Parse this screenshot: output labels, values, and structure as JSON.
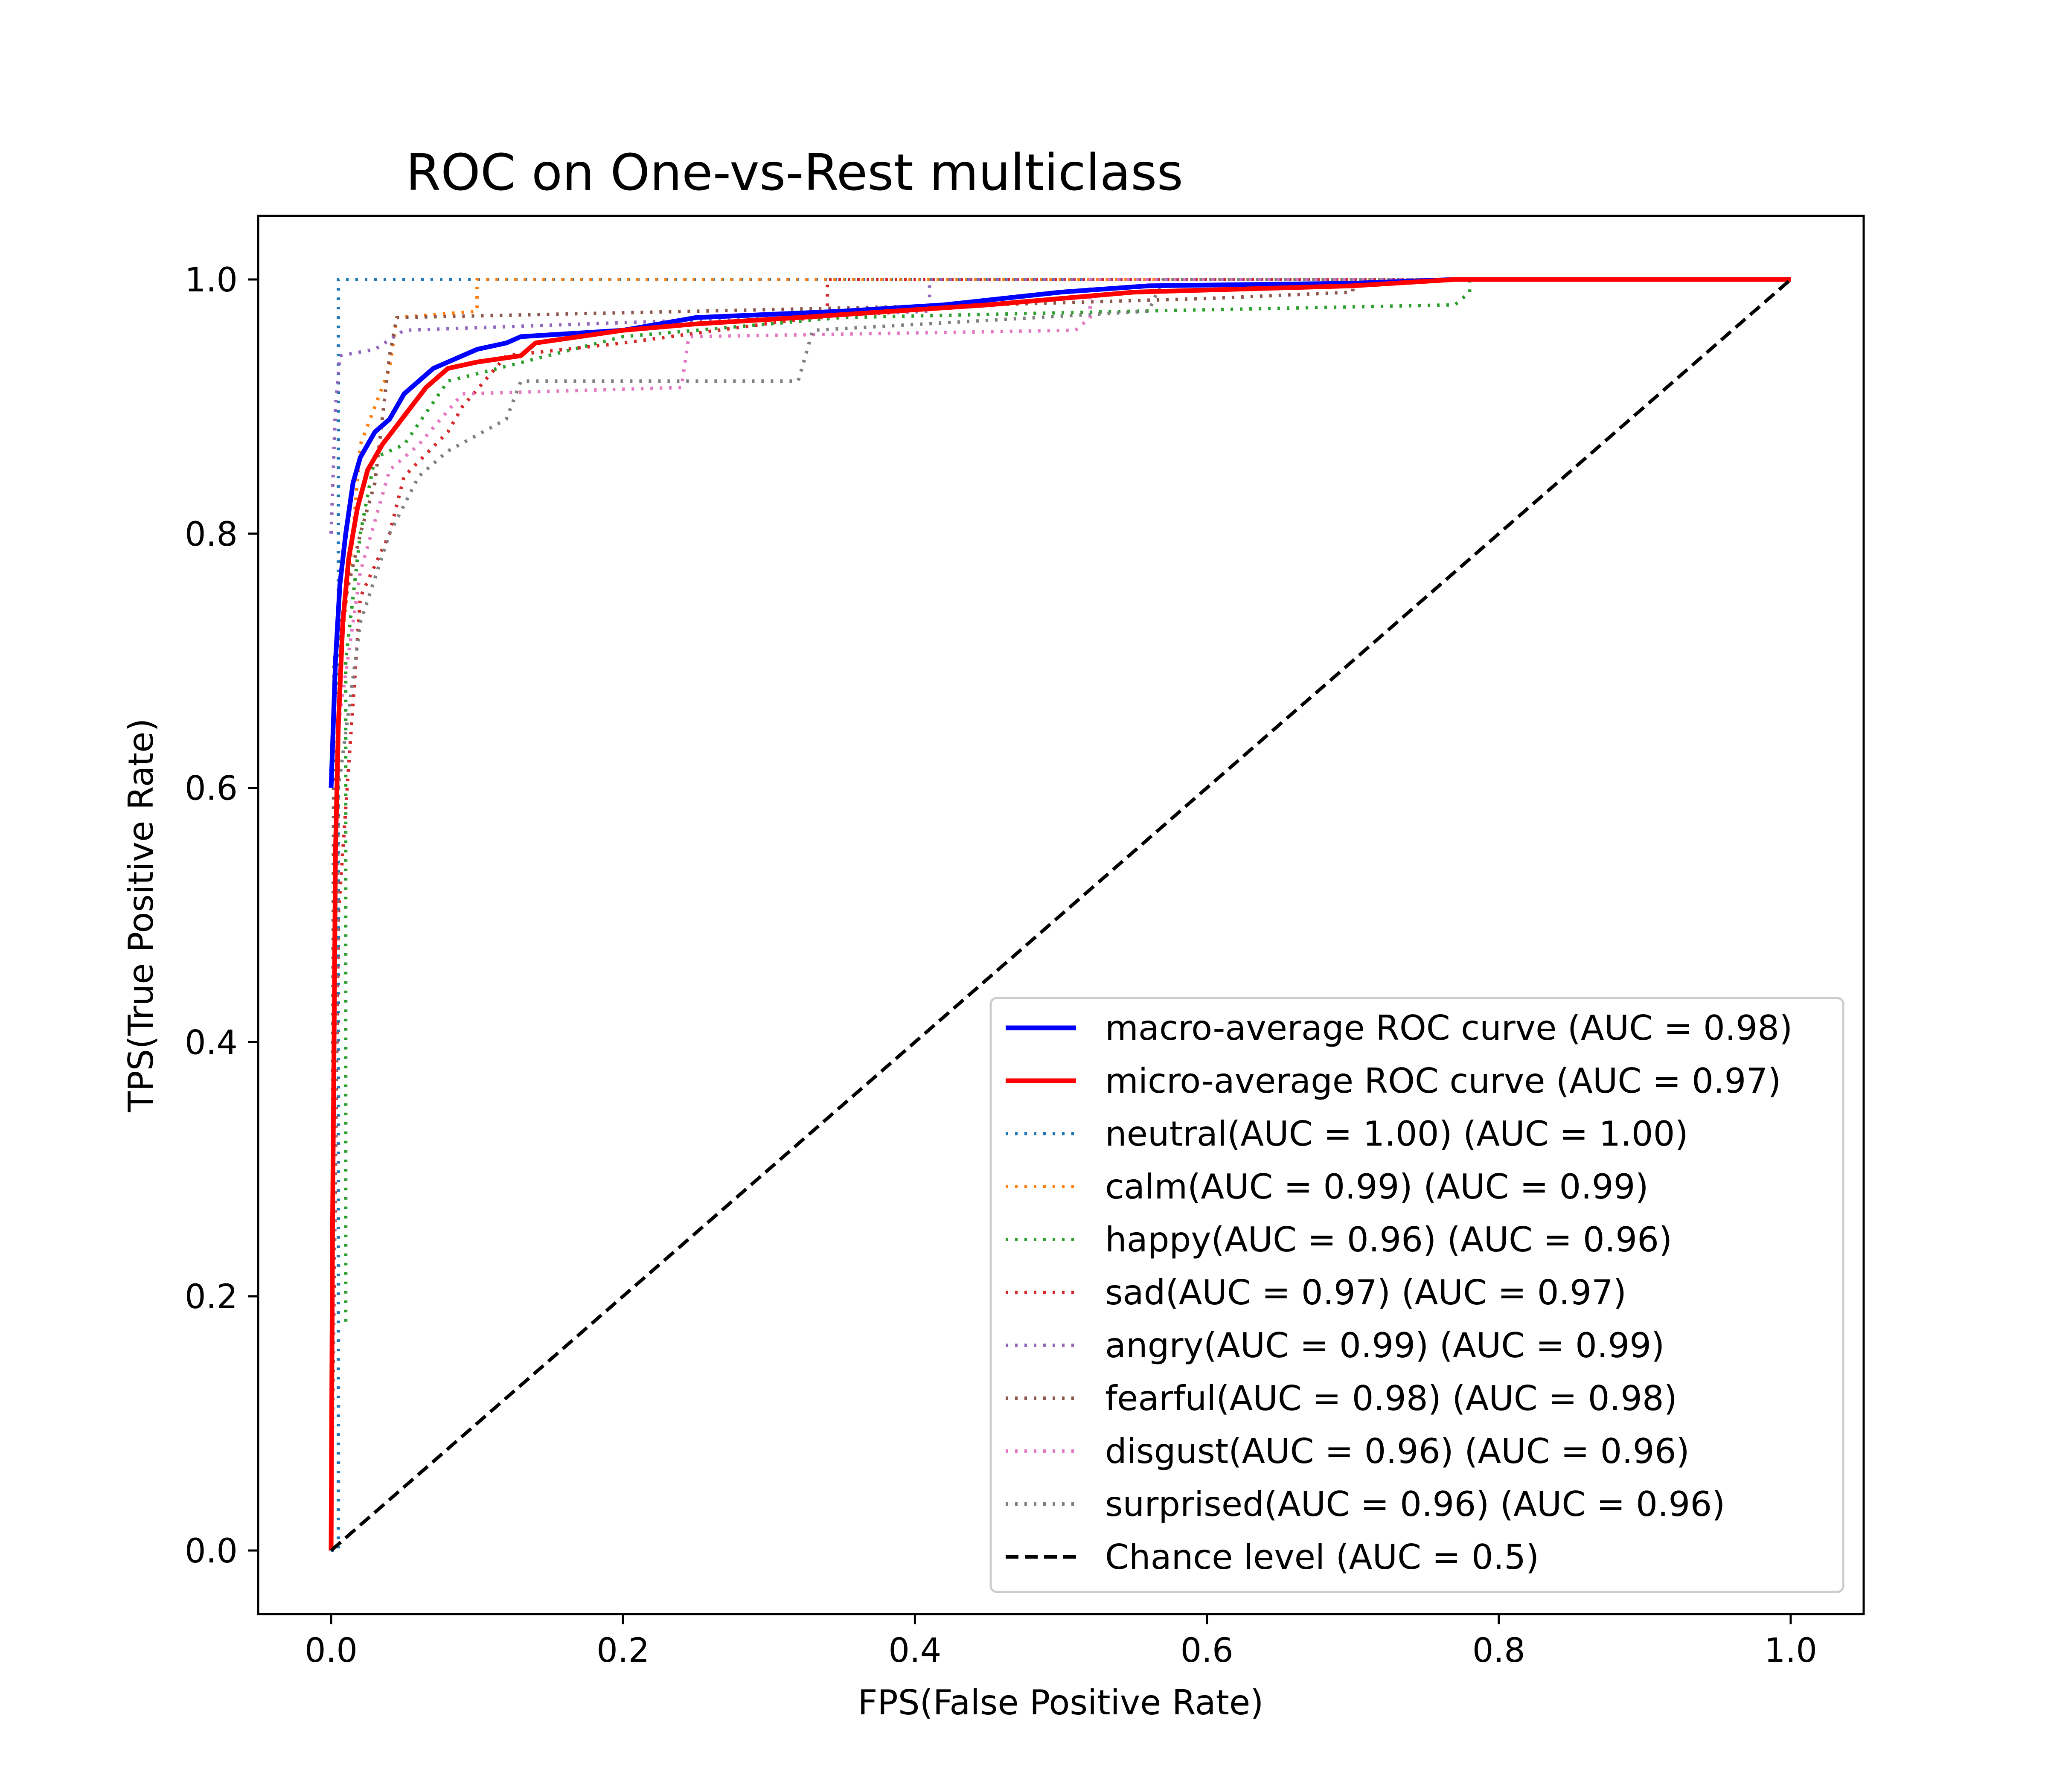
{
  "chart_data": {
    "type": "line",
    "title": "ROC on One-vs-Rest multiclass",
    "xlabel": "FPS(False Positive Rate)",
    "ylabel": "TPS(True Positive Rate)",
    "xlim": [
      -0.05,
      1.05
    ],
    "ylim": [
      -0.05,
      1.05
    ],
    "xticks": [
      0.0,
      0.2,
      0.4,
      0.6,
      0.8,
      1.0
    ],
    "yticks": [
      0.0,
      0.2,
      0.4,
      0.6,
      0.8,
      1.0
    ],
    "xtick_labels": [
      "0.0",
      "0.2",
      "0.4",
      "0.6",
      "0.8",
      "1.0"
    ],
    "ytick_labels": [
      "0.0",
      "0.2",
      "0.4",
      "0.6",
      "0.8",
      "1.0"
    ],
    "grid": false,
    "legend_position": "lower-right",
    "series": [
      {
        "name": "macro-average ROC curve (AUC = 0.98)",
        "color": "#0000ff",
        "style": "solid",
        "points": [
          [
            0,
            0.6
          ],
          [
            0.003,
            0.7
          ],
          [
            0.006,
            0.76
          ],
          [
            0.01,
            0.8
          ],
          [
            0.015,
            0.84
          ],
          [
            0.02,
            0.86
          ],
          [
            0.025,
            0.87
          ],
          [
            0.03,
            0.88
          ],
          [
            0.04,
            0.89
          ],
          [
            0.05,
            0.91
          ],
          [
            0.06,
            0.92
          ],
          [
            0.07,
            0.93
          ],
          [
            0.09,
            0.94
          ],
          [
            0.1,
            0.945
          ],
          [
            0.12,
            0.95
          ],
          [
            0.13,
            0.955
          ],
          [
            0.2,
            0.96
          ],
          [
            0.25,
            0.97
          ],
          [
            0.35,
            0.975
          ],
          [
            0.42,
            0.98
          ],
          [
            0.5,
            0.99
          ],
          [
            0.56,
            0.995
          ],
          [
            0.7,
            0.997
          ],
          [
            0.77,
            1.0
          ],
          [
            1.0,
            1.0
          ]
        ]
      },
      {
        "name": "micro-average ROC curve (AUC = 0.97)",
        "color": "#ff0000",
        "style": "solid",
        "points": [
          [
            0,
            0
          ],
          [
            0.001,
            0.26
          ],
          [
            0.002,
            0.4
          ],
          [
            0.003,
            0.55
          ],
          [
            0.005,
            0.65
          ],
          [
            0.008,
            0.73
          ],
          [
            0.012,
            0.78
          ],
          [
            0.018,
            0.82
          ],
          [
            0.025,
            0.85
          ],
          [
            0.035,
            0.87
          ],
          [
            0.045,
            0.885
          ],
          [
            0.055,
            0.9
          ],
          [
            0.065,
            0.915
          ],
          [
            0.08,
            0.93
          ],
          [
            0.1,
            0.935
          ],
          [
            0.13,
            0.94
          ],
          [
            0.14,
            0.95
          ],
          [
            0.2,
            0.96
          ],
          [
            0.25,
            0.965
          ],
          [
            0.32,
            0.97
          ],
          [
            0.45,
            0.98
          ],
          [
            0.55,
            0.99
          ],
          [
            0.7,
            0.995
          ],
          [
            0.77,
            1.0
          ],
          [
            1.0,
            1.0
          ]
        ]
      },
      {
        "name": "neutral(AUC = 1.00) (AUC = 1.00)",
        "color": "#1f77b4",
        "style": "dotted",
        "points": [
          [
            0,
            0
          ],
          [
            0.005,
            0
          ],
          [
            0.005,
            1.0
          ],
          [
            1.0,
            1.0
          ]
        ]
      },
      {
        "name": "calm(AUC = 0.99) (AUC = 0.99)",
        "color": "#ff7f0e",
        "style": "dotted",
        "points": [
          [
            0,
            0
          ],
          [
            0.003,
            0.6
          ],
          [
            0.008,
            0.72
          ],
          [
            0.015,
            0.8
          ],
          [
            0.02,
            0.87
          ],
          [
            0.03,
            0.9
          ],
          [
            0.04,
            0.93
          ],
          [
            0.045,
            0.97
          ],
          [
            0.1,
            0.975
          ],
          [
            0.1,
            1.0
          ],
          [
            1.0,
            1.0
          ]
        ]
      },
      {
        "name": "happy(AUC = 0.96) (AUC = 0.96)",
        "color": "#2ca02c",
        "style": "dotted",
        "points": [
          [
            0.01,
            0.18
          ],
          [
            0.01,
            0.7
          ],
          [
            0.02,
            0.8
          ],
          [
            0.03,
            0.86
          ],
          [
            0.05,
            0.87
          ],
          [
            0.08,
            0.92
          ],
          [
            0.2,
            0.955
          ],
          [
            0.35,
            0.97
          ],
          [
            0.55,
            0.975
          ],
          [
            0.77,
            0.98
          ],
          [
            0.78,
            0.99
          ],
          [
            0.78,
            1.0
          ],
          [
            1.0,
            1.0
          ]
        ]
      },
      {
        "name": "sad(AUC = 0.97) (AUC = 0.97)",
        "color": "#d62728",
        "style": "dotted",
        "points": [
          [
            0,
            0
          ],
          [
            0.005,
            0.5
          ],
          [
            0.02,
            0.75
          ],
          [
            0.04,
            0.8
          ],
          [
            0.05,
            0.845
          ],
          [
            0.08,
            0.88
          ],
          [
            0.09,
            0.9
          ],
          [
            0.12,
            0.94
          ],
          [
            0.2,
            0.95
          ],
          [
            0.33,
            0.97
          ],
          [
            0.34,
            0.97
          ],
          [
            0.34,
            1.0
          ],
          [
            1.0,
            1.0
          ]
        ]
      },
      {
        "name": "angry(AUC = 0.99) (AUC = 0.99)",
        "color": "#9467bd",
        "style": "dotted",
        "points": [
          [
            0,
            0.8
          ],
          [
            0.003,
            0.9
          ],
          [
            0.006,
            0.94
          ],
          [
            0.03,
            0.945
          ],
          [
            0.05,
            0.96
          ],
          [
            0.3,
            0.97
          ],
          [
            0.41,
            0.975
          ],
          [
            0.41,
            1.0
          ],
          [
            1.0,
            1.0
          ]
        ]
      },
      {
        "name": "fearful(AUC = 0.98) (AUC = 0.98)",
        "color": "#8c564b",
        "style": "dotted",
        "points": [
          [
            0,
            0
          ],
          [
            0.002,
            0.7
          ],
          [
            0.01,
            0.75
          ],
          [
            0.02,
            0.8
          ],
          [
            0.03,
            0.84
          ],
          [
            0.04,
            0.94
          ],
          [
            0.045,
            0.97
          ],
          [
            0.25,
            0.975
          ],
          [
            0.45,
            0.98
          ],
          [
            0.6,
            0.985
          ],
          [
            0.7,
            0.99
          ],
          [
            0.7,
            1.0
          ],
          [
            1.0,
            1.0
          ]
        ]
      },
      {
        "name": "disgust(AUC = 0.96) (AUC = 0.96)",
        "color": "#e377c2",
        "style": "dotted",
        "points": [
          [
            0,
            0
          ],
          [
            0.005,
            0.65
          ],
          [
            0.02,
            0.77
          ],
          [
            0.04,
            0.85
          ],
          [
            0.06,
            0.87
          ],
          [
            0.09,
            0.91
          ],
          [
            0.24,
            0.915
          ],
          [
            0.245,
            0.955
          ],
          [
            0.51,
            0.96
          ],
          [
            0.52,
            0.97
          ],
          [
            0.52,
            1.0
          ],
          [
            1.0,
            1.0
          ]
        ]
      },
      {
        "name": "surprised(AUC = 0.96) (AUC = 0.96)",
        "color": "#7f7f7f",
        "style": "dotted",
        "points": [
          [
            0,
            0
          ],
          [
            0.005,
            0.6
          ],
          [
            0.02,
            0.73
          ],
          [
            0.04,
            0.8
          ],
          [
            0.06,
            0.845
          ],
          [
            0.08,
            0.865
          ],
          [
            0.12,
            0.89
          ],
          [
            0.13,
            0.92
          ],
          [
            0.32,
            0.92
          ],
          [
            0.33,
            0.96
          ],
          [
            0.56,
            0.975
          ],
          [
            0.57,
            1.0
          ],
          [
            1.0,
            1.0
          ]
        ]
      },
      {
        "name": "Chance level (AUC = 0.5)",
        "color": "#000000",
        "style": "dashed",
        "points": [
          [
            0,
            0
          ],
          [
            1.0,
            1.0
          ]
        ]
      }
    ]
  }
}
